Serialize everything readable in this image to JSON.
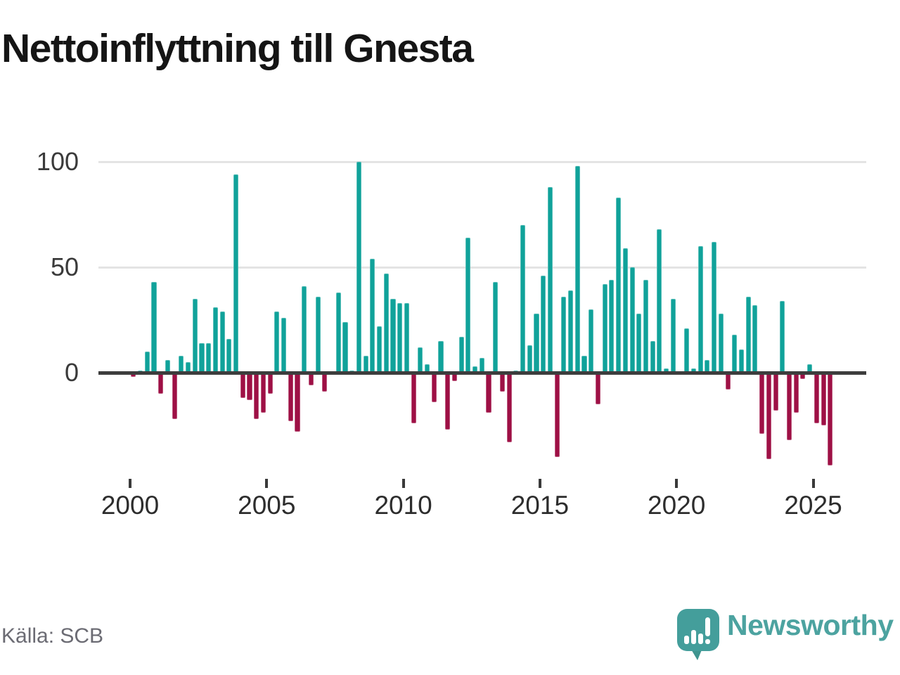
{
  "title": "Nettoinflyttning till Gnesta",
  "source": "Källa: SCB",
  "branding": {
    "wordmark": "Newsworthy"
  },
  "chart_data": {
    "type": "bar",
    "title": "Nettoinflyttning till Gnesta",
    "frequency": "quarterly",
    "x_start": "2000-Q1",
    "x_end": "2025-Q3",
    "values": [
      -2,
      1,
      10,
      43,
      -10,
      6,
      -22,
      8,
      5,
      35,
      14,
      14,
      31,
      29,
      16,
      94,
      -12,
      -13,
      -22,
      -19,
      -10,
      29,
      26,
      -23,
      -28,
      41,
      -6,
      36,
      -9,
      0,
      38,
      24,
      1,
      100,
      8,
      54,
      22,
      47,
      35,
      33,
      33,
      -24,
      12,
      4,
      -14,
      15,
      -27,
      -4,
      17,
      64,
      3,
      7,
      -19,
      43,
      -9,
      -33,
      1,
      70,
      13,
      28,
      46,
      88,
      -40,
      36,
      39,
      98,
      8,
      30,
      -15,
      42,
      44,
      83,
      59,
      50,
      28,
      44,
      15,
      68,
      2,
      35,
      -1,
      21,
      2,
      60,
      6,
      62,
      28,
      -8,
      18,
      11,
      36,
      32,
      -29,
      -41,
      -18,
      34,
      -32,
      -19,
      -3,
      4,
      -24,
      -25,
      -44
    ],
    "xticks": [
      "2000",
      "2005",
      "2010",
      "2015",
      "2020",
      "2025"
    ],
    "yticks": [
      0,
      50,
      100
    ],
    "ylim": [
      -50,
      100
    ],
    "xlabel": "",
    "ylabel": "",
    "grid": "horizontal",
    "legend": "none",
    "colors": {
      "positive": "#10a29a",
      "negative": "#9e1045"
    }
  }
}
